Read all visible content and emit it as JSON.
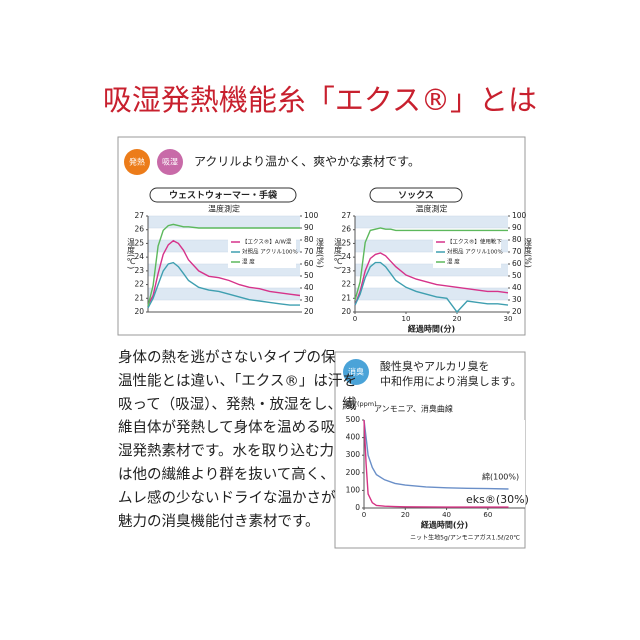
{
  "header": {
    "title": "吸湿発熱機能糸「エクス®」とは"
  },
  "warmth_panel": {
    "badges": [
      "発熱",
      "吸湿"
    ],
    "headline": "アクリルより温かく、爽やかな素材です。"
  },
  "body": {
    "lines": [
      "身体の熱を逃がさないタイプの保",
      "温性能とは違い、「エクス®」は汗を",
      "吸って（吸湿）、発熱・放湿をし、繊",
      "維自体が発熱して身体を温める吸",
      "湿発熱素材です。水を取り込む力",
      "は他の繊維より群を抜いて高く、",
      "ムレ感の少ないドライな温かさが",
      "魅力の消臭機能付き素材です。"
    ]
  },
  "deodorize_panel": {
    "badge": "消臭",
    "headline": [
      "酸性臭やアルカリ臭を",
      "中和作用により消臭します。"
    ],
    "note": "ニット生地5g/アンモニアガス1.5ℓ/20℃"
  },
  "chart_data": [
    {
      "type": "line",
      "panel_title": "ウェストウォーマー・手袋",
      "title": "温度測定",
      "ylabel": "温度(℃)",
      "y2label": "湿度(%)",
      "x": [
        0,
        1,
        2,
        3,
        4,
        5,
        6,
        7,
        8,
        10,
        12,
        14,
        16,
        18,
        20,
        22,
        24,
        26,
        28,
        30
      ],
      "xlim": [
        0,
        30
      ],
      "ylim": [
        20,
        27
      ],
      "yticks": [
        20,
        21,
        22,
        23,
        24,
        25,
        26,
        27
      ],
      "y2lim": [
        20,
        100
      ],
      "y2ticks": [
        20,
        30,
        40,
        50,
        60,
        70,
        80,
        90,
        100
      ],
      "grid": true,
      "series": [
        {
          "name": "【エクス®】A/W混",
          "color": "#d6338a",
          "values": [
            20.5,
            21.2,
            22.8,
            24.2,
            24.9,
            25.2,
            25,
            24.5,
            23.8,
            23,
            22.6,
            22.5,
            22.3,
            22,
            21.8,
            21.7,
            21.5,
            21.4,
            21.3,
            21.2
          ]
        },
        {
          "name": "対照品 アクリル100%",
          "color": "#3f9fb0",
          "values": [
            20.3,
            21,
            22,
            23,
            23.5,
            23.6,
            23.3,
            22.8,
            22.3,
            21.8,
            21.6,
            21.5,
            21.3,
            21.1,
            20.9,
            20.8,
            20.7,
            20.6,
            20.5,
            20.5
          ]
        },
        {
          "name": "湿 度",
          "color": "#5cb85c",
          "axis": "y2",
          "values": [
            25,
            42,
            75,
            88,
            92,
            93,
            92,
            91,
            91,
            90,
            90,
            90,
            90,
            90,
            90,
            90,
            90,
            90,
            90,
            90
          ]
        }
      ]
    },
    {
      "type": "line",
      "panel_title": "ソックス",
      "title": "温度測定",
      "ylabel": "温度(℃)",
      "y2label": "湿度(%)",
      "xlabel": "経過時間(分)",
      "x": [
        0,
        1,
        2,
        3,
        4,
        5,
        6,
        7,
        8,
        10,
        12,
        14,
        16,
        18,
        20,
        22,
        24,
        26,
        28,
        30
      ],
      "xlim": [
        0,
        30
      ],
      "xticks": [
        0,
        10,
        20,
        30
      ],
      "ylim": [
        20,
        27
      ],
      "yticks": [
        20,
        21,
        22,
        23,
        24,
        25,
        26,
        27
      ],
      "y2lim": [
        20,
        100
      ],
      "y2ticks": [
        20,
        30,
        40,
        50,
        60,
        70,
        80,
        90,
        100
      ],
      "grid": true,
      "series": [
        {
          "name": "【エクス®】使用靴下",
          "color": "#d6338a",
          "values": [
            20.5,
            21.5,
            23,
            23.9,
            24.2,
            24.3,
            24.1,
            23.7,
            23.3,
            22.7,
            22.4,
            22.2,
            22,
            21.9,
            21.8,
            21.7,
            21.6,
            21.5,
            21.5,
            21.4
          ]
        },
        {
          "name": "対照品 アクリル100%",
          "color": "#3f9fb0",
          "values": [
            20.5,
            21.3,
            22.5,
            23.3,
            23.6,
            23.6,
            23.3,
            22.8,
            22.3,
            21.8,
            21.5,
            21.3,
            21.1,
            21,
            20,
            20.8,
            20.7,
            20.6,
            20.6,
            20.5
          ]
        },
        {
          "name": "湿 度",
          "color": "#5cb85c",
          "axis": "y2",
          "values": [
            30,
            45,
            78,
            88,
            89,
            90,
            89,
            89,
            88,
            88,
            88,
            88,
            88,
            88,
            88,
            88,
            88,
            88,
            88,
            88
          ]
        }
      ]
    },
    {
      "type": "line",
      "title": "アンモニア、消臭曲線",
      "ylabel": "濃度(ppm)",
      "xlabel": "経過時間(分)",
      "x": [
        0,
        1,
        2,
        4,
        6,
        10,
        15,
        20,
        30,
        40,
        50,
        60,
        70
      ],
      "xlim": [
        0,
        78
      ],
      "xticks": [
        0,
        20,
        40,
        60
      ],
      "ylim": [
        0,
        500
      ],
      "yticks": [
        0,
        100,
        200,
        300,
        400,
        500
      ],
      "series": [
        {
          "name": "綿(100%)",
          "color": "#6a8fc8",
          "values": [
            500,
            400,
            300,
            230,
            190,
            160,
            140,
            130,
            120,
            115,
            112,
            110,
            108
          ]
        },
        {
          "name": "eks®(30%)",
          "color": "#d63384",
          "values": [
            500,
            250,
            80,
            30,
            15,
            10,
            8,
            7,
            6,
            5,
            5,
            5,
            5
          ]
        }
      ]
    }
  ]
}
